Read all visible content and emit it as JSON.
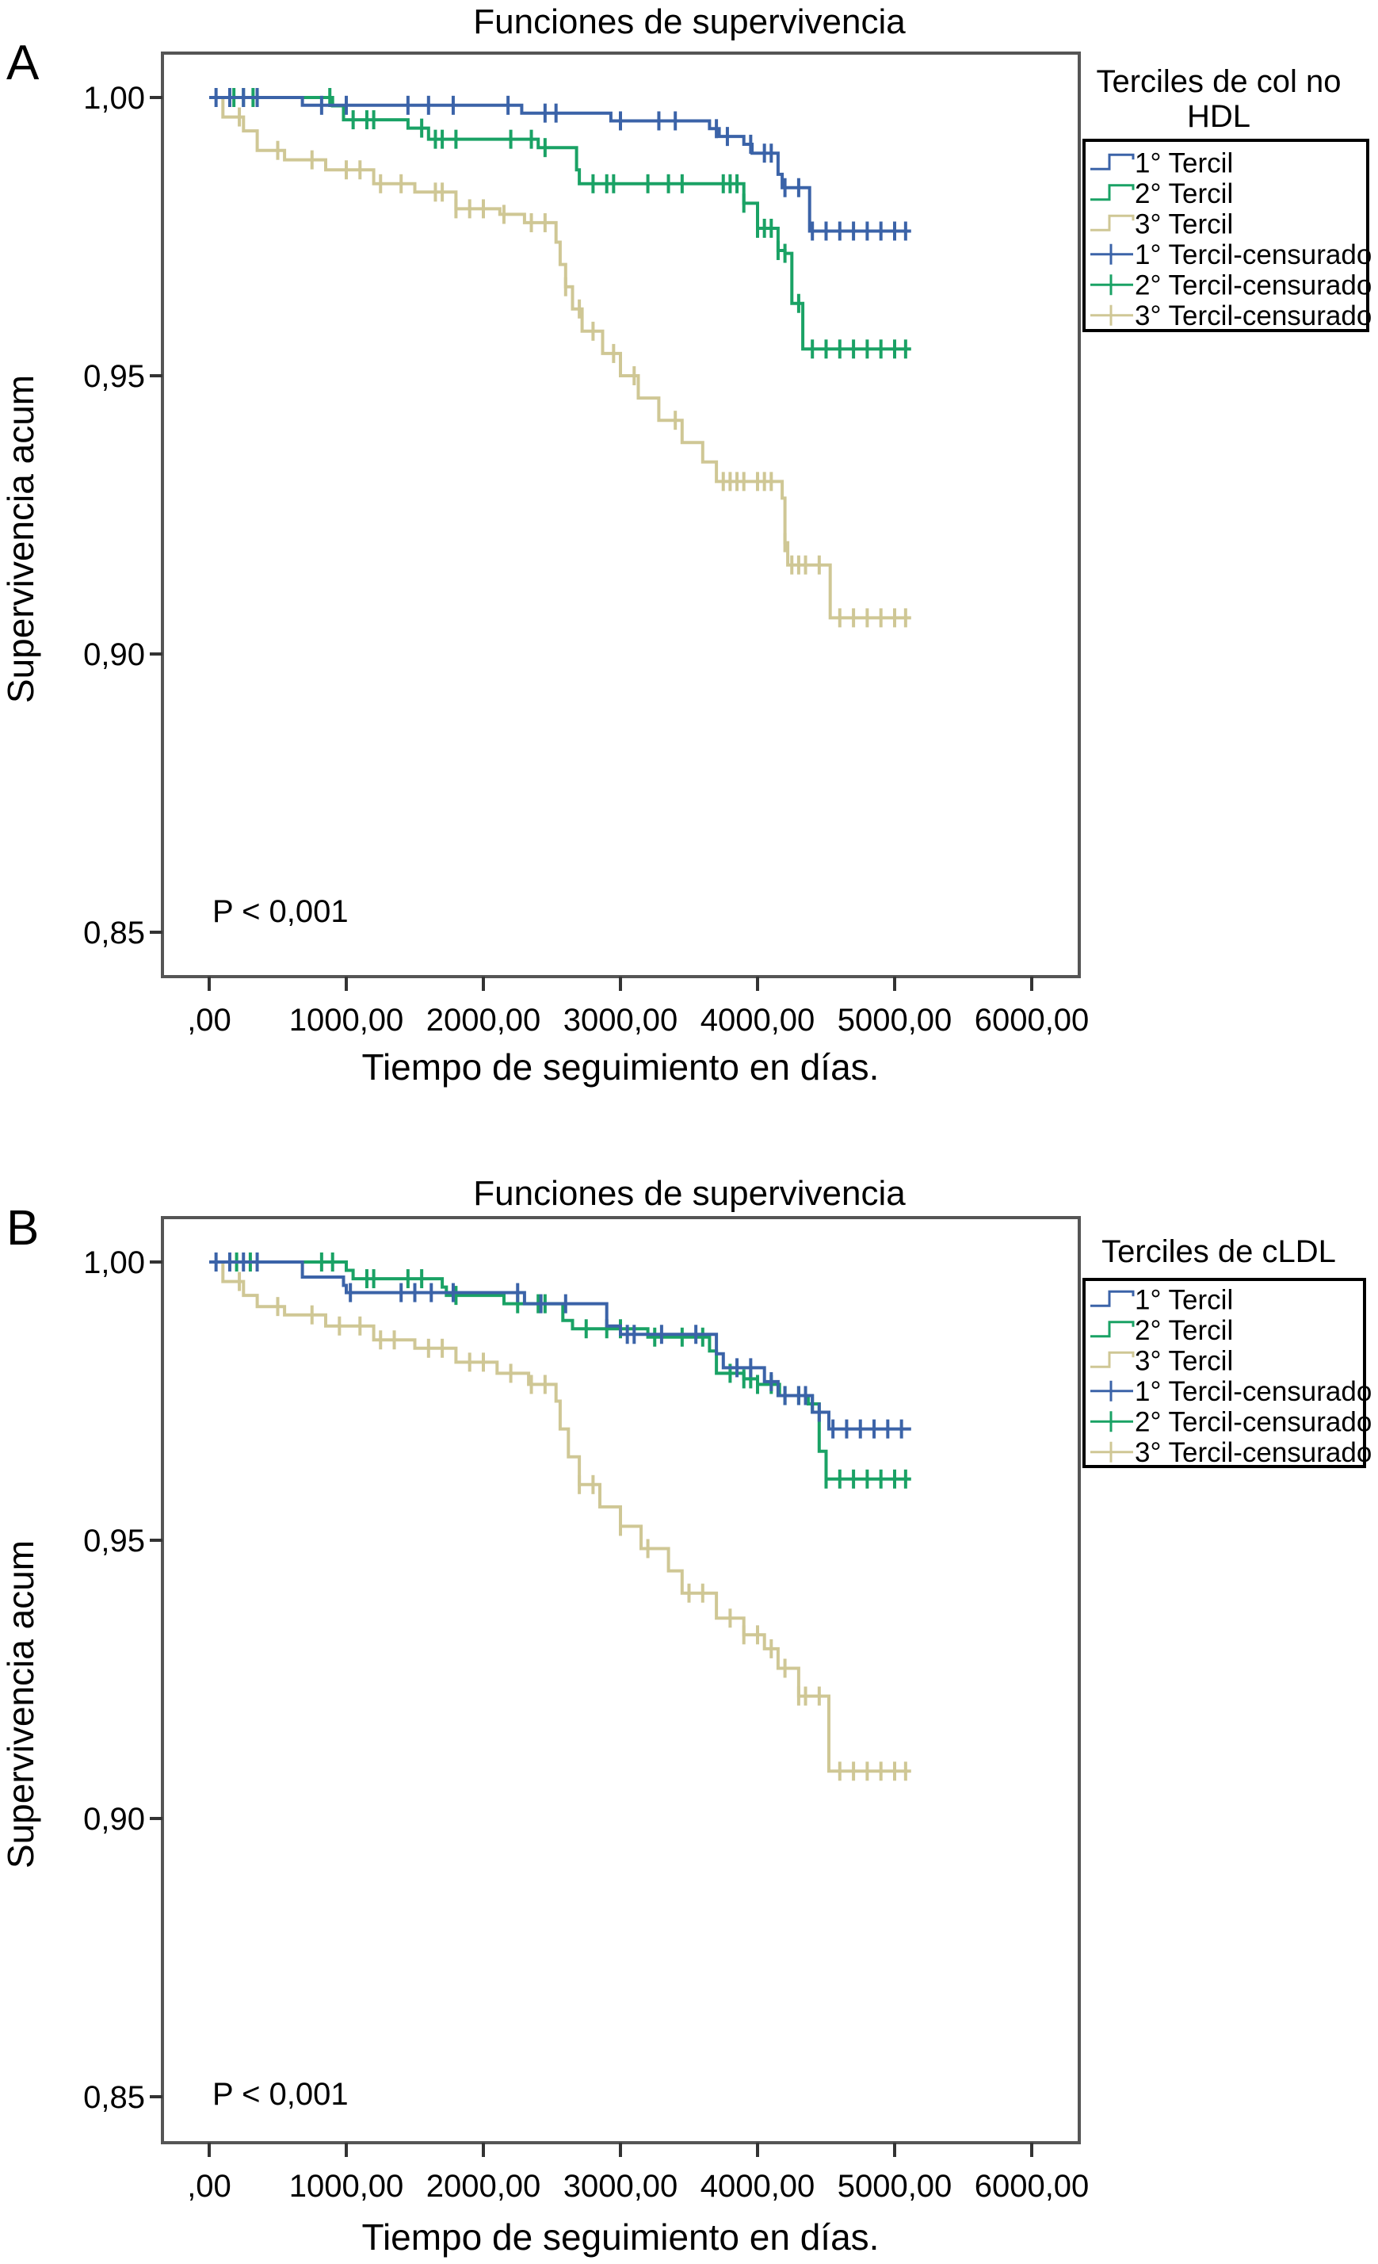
{
  "chart_data": [
    {
      "panel": "A",
      "type": "line",
      "title": "Funciones de supervivencia",
      "xlabel": "Tiempo de seguimiento en días.",
      "ylabel": "Supervivencia acum",
      "xlim": [
        -300,
        6600
      ],
      "ylim": [
        0.842,
        1.009
      ],
      "xticks": [
        0,
        1000,
        2000,
        3000,
        4000,
        5000,
        6000
      ],
      "xtick_labels": [
        ",00",
        "1000,00",
        "2000,00",
        "3000,00",
        "4000,00",
        "5000,00",
        "6000,00"
      ],
      "yticks": [
        1.0,
        0.95,
        0.9,
        0.85
      ],
      "ytick_labels": [
        "1,00",
        "0,95",
        "0,90",
        "0,85"
      ],
      "annotation": "P < 0,001",
      "legend": {
        "title": "Terciles de col no HDL",
        "title_lines": [
          "Terciles de col no",
          "HDL"
        ],
        "placement": "right",
        "entries": [
          "1° Tercil",
          "2° Tercil",
          "3° Tercil",
          "1° Tercil-censurado",
          "2° Tercil-censurado",
          "3° Tercil-censurado"
        ]
      },
      "series": [
        {
          "name": "1° Tercil",
          "color": "#3b63a8",
          "steps": [
            [
              0,
              1.0
            ],
            [
              680,
              0.9986
            ],
            [
              2280,
              0.9972
            ],
            [
              2930,
              0.9958
            ],
            [
              3650,
              0.9944
            ],
            [
              3720,
              0.993
            ],
            [
              3900,
              0.9916
            ],
            [
              3960,
              0.99
            ],
            [
              4150,
              0.9862
            ],
            [
              4180,
              0.9838
            ],
            [
              4380,
              0.9793
            ],
            [
              4380,
              0.976
            ],
            [
              5120,
              0.976
            ]
          ],
          "censored": [
            50,
            150,
            250,
            350,
            820,
            1000,
            1450,
            1600,
            1780,
            2180,
            2450,
            2530,
            3000,
            3280,
            3400,
            3700,
            3780,
            3950,
            4050,
            4100,
            4200,
            4300,
            4400,
            4500,
            4600,
            4700,
            4800,
            4900,
            5000,
            5080
          ]
        },
        {
          "name": "2° Tercil",
          "color": "#1aa265",
          "steps": [
            [
              0,
              1.0
            ],
            [
              900,
              0.9985
            ],
            [
              980,
              0.996
            ],
            [
              1450,
              0.9945
            ],
            [
              1600,
              0.9925
            ],
            [
              2400,
              0.991
            ],
            [
              2680,
              0.987
            ],
            [
              2700,
              0.9845
            ],
            [
              3900,
              0.981
            ],
            [
              4000,
              0.9765
            ],
            [
              4150,
              0.9725
            ],
            [
              4200,
              0.972
            ],
            [
              4250,
              0.97
            ],
            [
              4250,
              0.963
            ],
            [
              4330,
              0.963
            ],
            [
              4330,
              0.9548
            ],
            [
              5120,
              0.9548
            ]
          ],
          "censored": [
            180,
            250,
            320,
            880,
            1050,
            1150,
            1200,
            1550,
            1650,
            1700,
            1800,
            2200,
            2350,
            2450,
            2800,
            2900,
            2950,
            3200,
            3350,
            3450,
            3750,
            3800,
            3850,
            3900,
            4000,
            4050,
            4100,
            4150,
            4200,
            4300,
            4400,
            4500,
            4600,
            4700,
            4800,
            4900,
            5000,
            5080
          ]
        },
        {
          "name": "3° Tercil",
          "color": "#cfc795",
          "steps": [
            [
              0,
              1.0
            ],
            [
              100,
              0.9965
            ],
            [
              250,
              0.994
            ],
            [
              350,
              0.9905
            ],
            [
              550,
              0.9888
            ],
            [
              850,
              0.987
            ],
            [
              1200,
              0.9845
            ],
            [
              1500,
              0.983
            ],
            [
              1800,
              0.98
            ],
            [
              2120,
              0.979
            ],
            [
              2300,
              0.9775
            ],
            [
              2530,
              0.974
            ],
            [
              2560,
              0.97
            ],
            [
              2600,
              0.966
            ],
            [
              2650,
              0.962
            ],
            [
              2720,
              0.958
            ],
            [
              2870,
              0.954
            ],
            [
              3000,
              0.95
            ],
            [
              3130,
              0.946
            ],
            [
              3280,
              0.942
            ],
            [
              3450,
              0.938
            ],
            [
              3600,
              0.9345
            ],
            [
              3700,
              0.931
            ],
            [
              4180,
              0.928
            ],
            [
              4200,
              0.92
            ],
            [
              4220,
              0.916
            ],
            [
              4530,
              0.9065
            ],
            [
              5120,
              0.9065
            ]
          ],
          "censored": [
            220,
            500,
            750,
            1000,
            1100,
            1250,
            1400,
            1650,
            1700,
            1800,
            1900,
            2000,
            2150,
            2350,
            2450,
            2600,
            2700,
            2800,
            2950,
            3100,
            3400,
            3750,
            3800,
            3850,
            3900,
            4000,
            4050,
            4100,
            4200,
            4250,
            4300,
            4350,
            4450,
            4600,
            4700,
            4800,
            4900,
            5000,
            5080
          ]
        }
      ]
    },
    {
      "panel": "B",
      "type": "line",
      "title": "Funciones de supervivencia",
      "xlabel": "Tiempo de seguimiento en días.",
      "ylabel": "Supervivencia acum",
      "xlim": [
        -300,
        6600
      ],
      "ylim": [
        0.842,
        1.009
      ],
      "xticks": [
        0,
        1000,
        2000,
        3000,
        4000,
        5000,
        6000
      ],
      "xtick_labels": [
        ",00",
        "1000,00",
        "2000,00",
        "3000,00",
        "4000,00",
        "5000,00",
        "6000,00"
      ],
      "yticks": [
        1.0,
        0.95,
        0.9,
        0.85
      ],
      "ytick_labels": [
        "1,00",
        "0,95",
        "0,90",
        "0,85"
      ],
      "annotation": "P < 0,001",
      "legend": {
        "title": "Terciles de cLDL",
        "title_lines": [
          "Terciles de cLDL"
        ],
        "placement": "right",
        "entries": [
          "1° Tercil",
          "2° Tercil",
          "3° Tercil",
          "1° Tercil-censurado",
          "2° Tercil-censurado",
          "3° Tercil-censurado"
        ]
      },
      "series": [
        {
          "name": "1° Tercil",
          "color": "#3b63a8",
          "steps": [
            [
              0,
              1.0
            ],
            [
              680,
              0.9973
            ],
            [
              980,
              0.9958
            ],
            [
              1000,
              0.9945
            ],
            [
              2300,
              0.9925
            ],
            [
              2900,
              0.9885
            ],
            [
              3000,
              0.987
            ],
            [
              3700,
              0.9835
            ],
            [
              3750,
              0.981
            ],
            [
              4050,
              0.9785
            ],
            [
              4150,
              0.976
            ],
            [
              4400,
              0.9745
            ],
            [
              4400,
              0.973
            ],
            [
              4520,
              0.97
            ],
            [
              5120,
              0.97
            ]
          ],
          "censored": [
            50,
            150,
            250,
            350,
            1030,
            1400,
            1500,
            1620,
            1780,
            2250,
            2420,
            2600,
            3050,
            3100,
            3300,
            3550,
            3850,
            3950,
            4100,
            4200,
            4300,
            4350,
            4450,
            4550,
            4650,
            4750,
            4850,
            4950,
            5050
          ]
        },
        {
          "name": "2° Tercil",
          "color": "#1aa265",
          "steps": [
            [
              0,
              1.0
            ],
            [
              1000,
              0.9985
            ],
            [
              1050,
              0.997
            ],
            [
              1700,
              0.9955
            ],
            [
              1730,
              0.994
            ],
            [
              2150,
              0.9925
            ],
            [
              2580,
              0.9895
            ],
            [
              2650,
              0.988
            ],
            [
              3200,
              0.9865
            ],
            [
              3650,
              0.985
            ],
            [
              3650,
              0.984
            ],
            [
              3700,
              0.982
            ],
            [
              3700,
              0.98
            ],
            [
              3900,
              0.979
            ],
            [
              4000,
              0.978
            ],
            [
              4160,
              0.976
            ],
            [
              4370,
              0.9745
            ],
            [
              4450,
              0.966
            ],
            [
              4500,
              0.961
            ],
            [
              5120,
              0.961
            ]
          ],
          "censored": [
            200,
            300,
            820,
            900,
            1150,
            1200,
            1450,
            1550,
            1800,
            2250,
            2400,
            2450,
            2750,
            2900,
            3000,
            3250,
            3450,
            3600,
            3800,
            3900,
            3950,
            4000,
            4100,
            4200,
            4300,
            4400,
            4500,
            4600,
            4700,
            4800,
            4900,
            5000,
            5080
          ]
        },
        {
          "name": "3° Tercil",
          "color": "#cfc795",
          "steps": [
            [
              0,
              1.0
            ],
            [
              100,
              0.9965
            ],
            [
              250,
              0.994
            ],
            [
              350,
              0.992
            ],
            [
              550,
              0.9905
            ],
            [
              850,
              0.9885
            ],
            [
              1200,
              0.986
            ],
            [
              1500,
              0.9845
            ],
            [
              1800,
              0.982
            ],
            [
              2100,
              0.98
            ],
            [
              2330,
              0.978
            ],
            [
              2530,
              0.975
            ],
            [
              2560,
              0.97
            ],
            [
              2620,
              0.965
            ],
            [
              2700,
              0.96
            ],
            [
              2850,
              0.956
            ],
            [
              3000,
              0.9525
            ],
            [
              3150,
              0.9485
            ],
            [
              3350,
              0.9445
            ],
            [
              3450,
              0.9405
            ],
            [
              3700,
              0.936
            ],
            [
              3900,
              0.933
            ],
            [
              4050,
              0.9305
            ],
            [
              4150,
              0.927
            ],
            [
              4300,
              0.922
            ],
            [
              4520,
              0.9195
            ],
            [
              4520,
              0.9085
            ],
            [
              5120,
              0.9085
            ]
          ],
          "censored": [
            220,
            500,
            750,
            950,
            1100,
            1250,
            1350,
            1600,
            1700,
            1900,
            2000,
            2200,
            2350,
            2450,
            2700,
            2800,
            3000,
            3200,
            3500,
            3600,
            3800,
            3900,
            4000,
            4100,
            4200,
            4300,
            4350,
            4450,
            4600,
            4700,
            4800,
            4900,
            5000,
            5080
          ]
        }
      ]
    }
  ]
}
